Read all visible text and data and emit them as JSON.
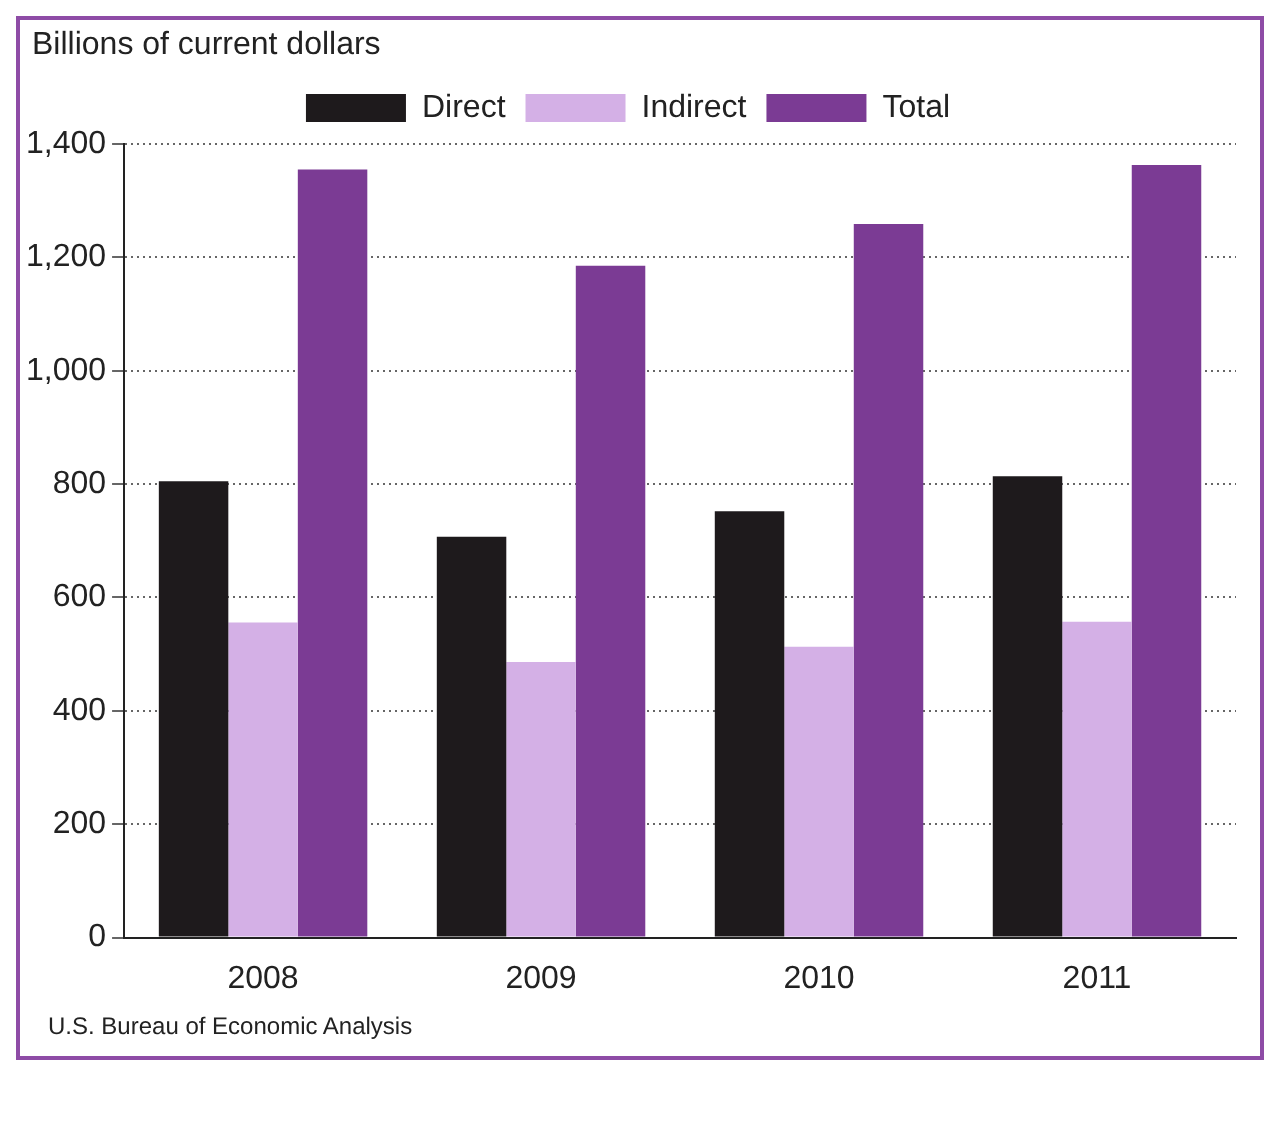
{
  "chart_data": {
    "type": "bar",
    "ylabel": "Billions of current dollars",
    "annotations": [
      "U.S. Bureau of Economic Analysis"
    ],
    "categories": [
      "2008",
      "2009",
      "2010",
      "2011"
    ],
    "series": [
      {
        "name": "Direct",
        "color": "#1e1a1c",
        "values": [
          805,
          707,
          752,
          814
        ]
      },
      {
        "name": "Indirect",
        "color": "#d4b0e6",
        "values": [
          556,
          486,
          513,
          557
        ]
      },
      {
        "name": "Total",
        "color": "#7b3b94",
        "values": [
          1355,
          1185,
          1259,
          1363
        ]
      }
    ],
    "ylim": [
      0,
      1400
    ],
    "yticks": [
      0,
      200,
      400,
      600,
      800,
      {
        "value": 1000,
        "label": "1,000"
      },
      {
        "value": 1200,
        "label": "1,200"
      },
      {
        "value": 1400,
        "label": "1,400"
      }
    ],
    "grid": "y",
    "legend": "top"
  }
}
